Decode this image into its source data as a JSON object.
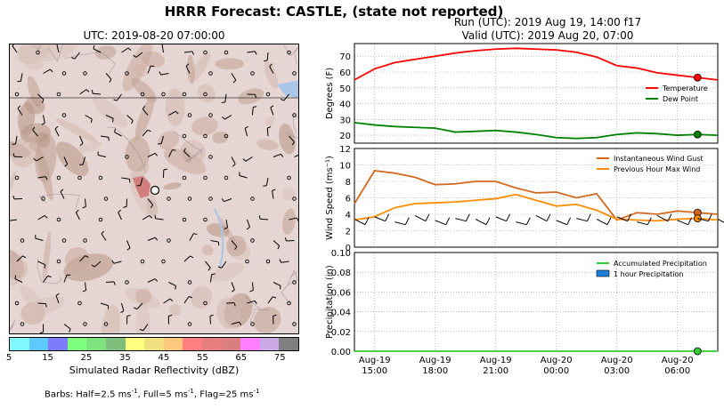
{
  "header": {
    "title": "HRRR Forecast: CASTLE, (state not reported)",
    "map_title": "UTC: 2019-08-20 07:00:00",
    "run_line": "Run (UTC): 2019 Aug 19, 14:00 f17",
    "valid_line": "Valid (UTC): 2019 Aug 20, 07:00"
  },
  "colorbar": {
    "label": "Simulated Radar Reflectivity (dBZ)",
    "ticks": [
      "5",
      "15",
      "25",
      "35",
      "45",
      "55",
      "65",
      "75"
    ],
    "colors": [
      "#7ff8ff",
      "#5fc9fe",
      "#7d7dfa",
      "#7dff7d",
      "#7ee27e",
      "#7ebf7e",
      "#ffff7f",
      "#f0e07f",
      "#ffc87f",
      "#ff7f7f",
      "#e77f7f",
      "#d97f7f",
      "#ff7fff",
      "#c9a8e3",
      "#7f7f7f"
    ]
  },
  "barb_legend": {
    "pre": "Barbs: Half=2.5 ms",
    "mid1": ", Full=5 ms",
    "mid2": ", Flag=25 ms",
    "sup": "-1"
  },
  "colors": {
    "temperature": "#ff0000",
    "dew_point": "#008000",
    "gust": "#d2691e",
    "max_wind": "#ff8c00",
    "precip_line": "#33cc33",
    "precip_bar": "#1e7fd9",
    "map_base": "#e6d6d3"
  },
  "chart_data": [
    {
      "type": "line",
      "ylabel": "Degrees (F)",
      "ylim": [
        15,
        78
      ],
      "yticks": [
        20,
        30,
        40,
        50,
        60,
        70
      ],
      "grid": true,
      "legend": "right",
      "x": [
        "Aug-19 14:00",
        "Aug-19 15:00",
        "Aug-19 16:00",
        "Aug-19 17:00",
        "Aug-19 18:00",
        "Aug-19 19:00",
        "Aug-19 20:00",
        "Aug-19 21:00",
        "Aug-19 22:00",
        "Aug-19 23:00",
        "Aug-20 00:00",
        "Aug-20 01:00",
        "Aug-20 02:00",
        "Aug-20 03:00",
        "Aug-20 04:00",
        "Aug-20 05:00",
        "Aug-20 06:00",
        "Aug-20 07:00",
        "Aug-20 08:00"
      ],
      "series": [
        {
          "name": "Temperature",
          "values": [
            55,
            62,
            66,
            68,
            70,
            72,
            73.5,
            74.5,
            75,
            74.5,
            74,
            72.5,
            69.5,
            64,
            62.5,
            59.5,
            58,
            56.5,
            55
          ]
        },
        {
          "name": "Dew Point",
          "values": [
            28,
            26.5,
            25.5,
            25,
            24.5,
            22,
            22.5,
            23,
            22,
            20.5,
            18.5,
            18,
            18.5,
            20.5,
            21.5,
            21,
            20,
            20.5,
            20
          ]
        }
      ],
      "markers": [
        {
          "series": "Temperature",
          "x": "Aug-20 07:00",
          "y": 56.5
        },
        {
          "series": "Dew Point",
          "x": "Aug-20 07:00",
          "y": 20.5
        }
      ]
    },
    {
      "type": "line",
      "ylabel": "Wind Speed (ms⁻¹)",
      "ylim": [
        0,
        12
      ],
      "yticks": [
        0,
        2,
        4,
        6,
        8,
        10,
        12
      ],
      "grid": true,
      "legend": "top-right",
      "x": [
        "Aug-19 14:00",
        "Aug-19 15:00",
        "Aug-19 16:00",
        "Aug-19 17:00",
        "Aug-19 18:00",
        "Aug-19 19:00",
        "Aug-19 20:00",
        "Aug-19 21:00",
        "Aug-19 22:00",
        "Aug-19 23:00",
        "Aug-20 00:00",
        "Aug-20 01:00",
        "Aug-20 02:00",
        "Aug-20 03:00",
        "Aug-20 04:00",
        "Aug-20 05:00",
        "Aug-20 06:00",
        "Aug-20 07:00",
        "Aug-20 08:00"
      ],
      "series": [
        {
          "name": "Instantaneous Wind Gust",
          "values": [
            5.3,
            9.3,
            9.0,
            8.5,
            7.6,
            7.7,
            8.0,
            8.0,
            7.2,
            6.6,
            6.7,
            6.0,
            6.5,
            3.3,
            4.2,
            4.0,
            4.4,
            4.2,
            4.0
          ]
        },
        {
          "name": "Previous Hour Max Wind",
          "values": [
            3.3,
            3.7,
            4.8,
            5.3,
            5.4,
            5.5,
            5.7,
            5.9,
            6.4,
            5.7,
            5.0,
            5.2,
            4.5,
            3.4,
            3.3,
            3.2,
            3.4,
            3.5,
            3.3
          ]
        }
      ],
      "markers": [
        {
          "series": "Instantaneous Wind Gust",
          "x": "Aug-20 07:00",
          "y": 4.2
        },
        {
          "series": "Previous Hour Max Wind",
          "x": "Aug-20 07:00",
          "y": 3.5
        }
      ]
    },
    {
      "type": "line",
      "ylabel": "Precipitation (in)",
      "ylim": [
        0,
        0.1
      ],
      "yticks": [
        "0.00",
        "0.02",
        "0.04",
        "0.06",
        "0.08",
        "0.10"
      ],
      "grid": true,
      "legend": "top-right",
      "series": [
        {
          "name": "Accumulated Precipitation",
          "values": [
            0,
            0,
            0,
            0,
            0,
            0,
            0,
            0,
            0,
            0,
            0,
            0,
            0,
            0,
            0,
            0,
            0,
            0,
            0
          ]
        },
        {
          "name": "1 hour Precipitation",
          "values": [
            0,
            0,
            0,
            0,
            0,
            0,
            0,
            0,
            0,
            0,
            0,
            0,
            0,
            0,
            0,
            0,
            0,
            0,
            0
          ]
        }
      ],
      "x_tick_labels": [
        [
          "Aug-19",
          "15:00"
        ],
        [
          "Aug-19",
          "18:00"
        ],
        [
          "Aug-19",
          "21:00"
        ],
        [
          "Aug-20",
          "00:00"
        ],
        [
          "Aug-20",
          "03:00"
        ],
        [
          "Aug-20",
          "06:00"
        ]
      ],
      "x_tick_hours": [
        1,
        4,
        7,
        10,
        13,
        16
      ]
    }
  ]
}
